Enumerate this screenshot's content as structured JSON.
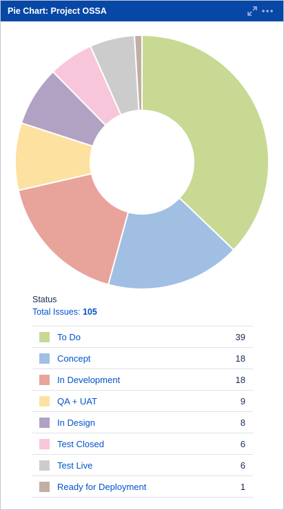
{
  "header": {
    "title": "Pie Chart: Project OSSA",
    "maximize_icon": "maximize-icon",
    "more_icon": "more-options-icon"
  },
  "summary": {
    "status_label": "Status",
    "total_label": "Total Issues:",
    "total_value": "105"
  },
  "chart_data": {
    "type": "pie",
    "style": "donut",
    "title": "Pie Chart: Project OSSA",
    "categories": [
      "To Do",
      "Concept",
      "In Development",
      "QA + UAT",
      "In Design",
      "Test Closed",
      "Test Live",
      "Ready for Deployment"
    ],
    "values": [
      39,
      18,
      18,
      9,
      8,
      6,
      6,
      1
    ],
    "colors": [
      "#c7d993",
      "#a0bfe3",
      "#e8a39b",
      "#fde1a1",
      "#b1a2c4",
      "#f8c6da",
      "#cccccc",
      "#c2aea4"
    ],
    "total": 105,
    "legend": "bottom"
  }
}
